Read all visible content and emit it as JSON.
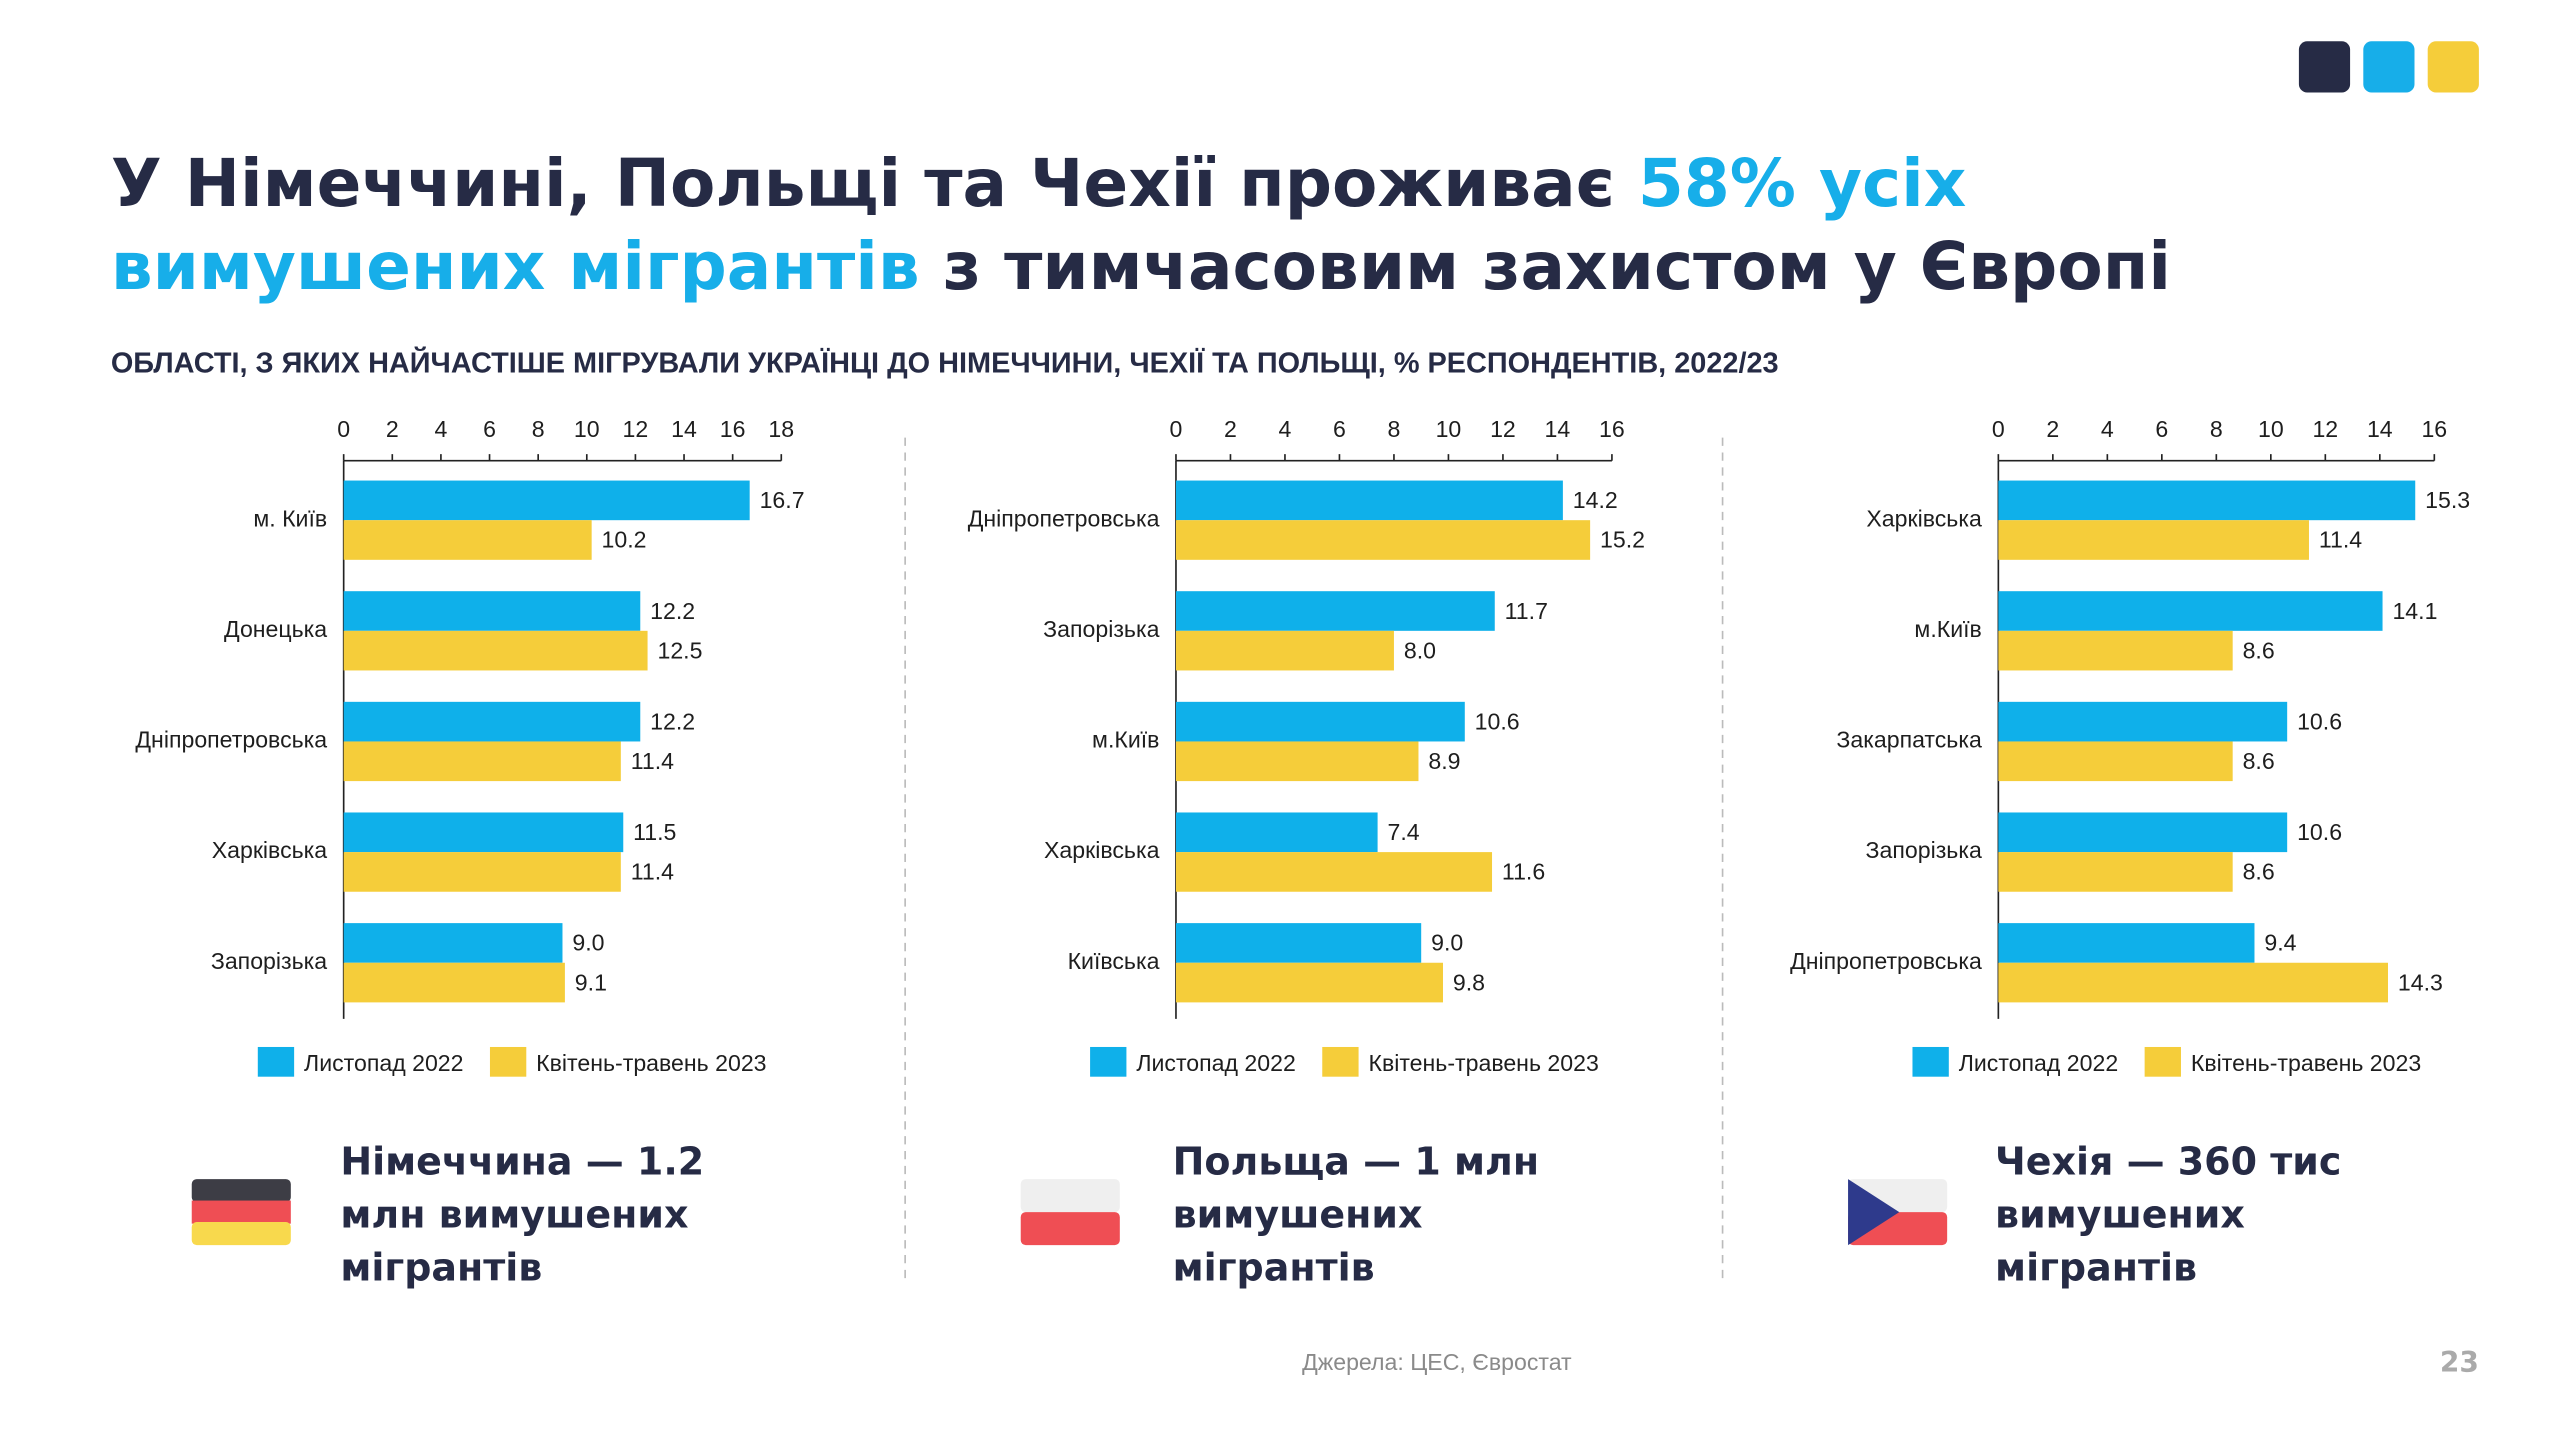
{
  "header": {
    "title_lines": [
      [
        {
          "text": "У Німеччині, Польщі та Чехії проживає ",
          "color": "#262b45"
        },
        {
          "text": "58% усіх",
          "color": "#17aee9"
        }
      ],
      [
        {
          "text": "вимушених мігрантів",
          "color": "#17aee9"
        },
        {
          "text": " з тимчасовим захистом у Європі",
          "color": "#262b45"
        }
      ]
    ],
    "subtitle": "ОБЛАСТІ, З ЯКИХ НАЙЧАСТІШЕ МІГРУВАЛИ УКРАЇНЦІ ДО НІМЕЧЧИНИ, ЧЕХІЇ ТА ПОЛЬЩІ, % РЕСПОНДЕНТІВ, 2022/23"
  },
  "chart_data": [
    {
      "type": "bar",
      "orientation": "horizontal",
      "legend": "bottom",
      "categories": [
        "м. Київ",
        "Донецька",
        "Дніпропетровська",
        "Харківська",
        "Запорізька"
      ],
      "series": [
        {
          "name": "Листопад 2022",
          "color": "#0fb0ea",
          "values": [
            16.7,
            12.2,
            12.2,
            11.5,
            9
          ],
          "value_labels": [
            "16.7",
            "12.2",
            "12.2",
            "11.5",
            "9.0"
          ]
        },
        {
          "name": "Квітень-травень 2023",
          "color": "#f5cd3a",
          "values": [
            10.2,
            12.5,
            11.4,
            11.4,
            9.1
          ],
          "value_labels": [
            "10.2",
            "12.5",
            "11.4",
            "11.4",
            "9.1"
          ]
        }
      ],
      "xlim": [
        0,
        18
      ],
      "xticks": [
        0,
        2,
        4,
        6,
        8,
        10,
        12,
        14,
        16,
        18
      ],
      "caption_lines": [
        "Німеччина — 1.2",
        "млн вимушених",
        "мігрантів"
      ]
    },
    {
      "type": "bar",
      "orientation": "horizontal",
      "legend": "bottom",
      "categories": [
        "Дніпропетровська",
        "Запорізька",
        "м.Київ",
        "Харківська",
        "Київська"
      ],
      "series": [
        {
          "name": "Листопад 2022",
          "color": "#0fb0ea",
          "values": [
            14.2,
            11.7,
            10.6,
            7.4,
            9
          ],
          "value_labels": [
            "14.2",
            "11.7",
            "10.6",
            "7.4",
            "9.0"
          ]
        },
        {
          "name": "Квітень-травень 2023",
          "color": "#f5cd3a",
          "values": [
            15.2,
            8,
            8.9,
            11.6,
            9.8
          ],
          "value_labels": [
            "15.2",
            "8.0",
            "8.9",
            "11.6",
            "9.8"
          ]
        }
      ],
      "xlim": [
        0,
        16
      ],
      "xticks": [
        0,
        2,
        4,
        6,
        8,
        10,
        12,
        14,
        16
      ],
      "caption_lines": [
        "Польща — 1 млн",
        "вимушених",
        "мігрантів"
      ]
    },
    {
      "type": "bar",
      "orientation": "horizontal",
      "legend": "bottom",
      "categories": [
        "Харківська",
        "м.Київ",
        "Закарпатська",
        "Запорізька",
        "Дніпропетровська"
      ],
      "series": [
        {
          "name": "Листопад 2022",
          "color": "#0fb0ea",
          "values": [
            15.3,
            14.1,
            10.6,
            10.6,
            9.4
          ],
          "value_labels": [
            "15.3",
            "14.1",
            "10.6",
            "10.6",
            "9.4"
          ]
        },
        {
          "name": "Квітень-травень 2023",
          "color": "#f5cd3a",
          "values": [
            11.4,
            8.6,
            8.6,
            8.6,
            14.3
          ],
          "value_labels": [
            "11.4",
            "8.6",
            "8.6",
            "8.6",
            "14.3"
          ]
        }
      ],
      "xlim": [
        0,
        16
      ],
      "xticks": [
        0,
        2,
        4,
        6,
        8,
        10,
        12,
        14,
        16
      ],
      "caption_lines": [
        "Чехія — 360 тис",
        "вимушених",
        "мігрантів"
      ]
    }
  ],
  "footer": {
    "source": "Джерела: ЦЕС, Євростат",
    "page": "23"
  }
}
